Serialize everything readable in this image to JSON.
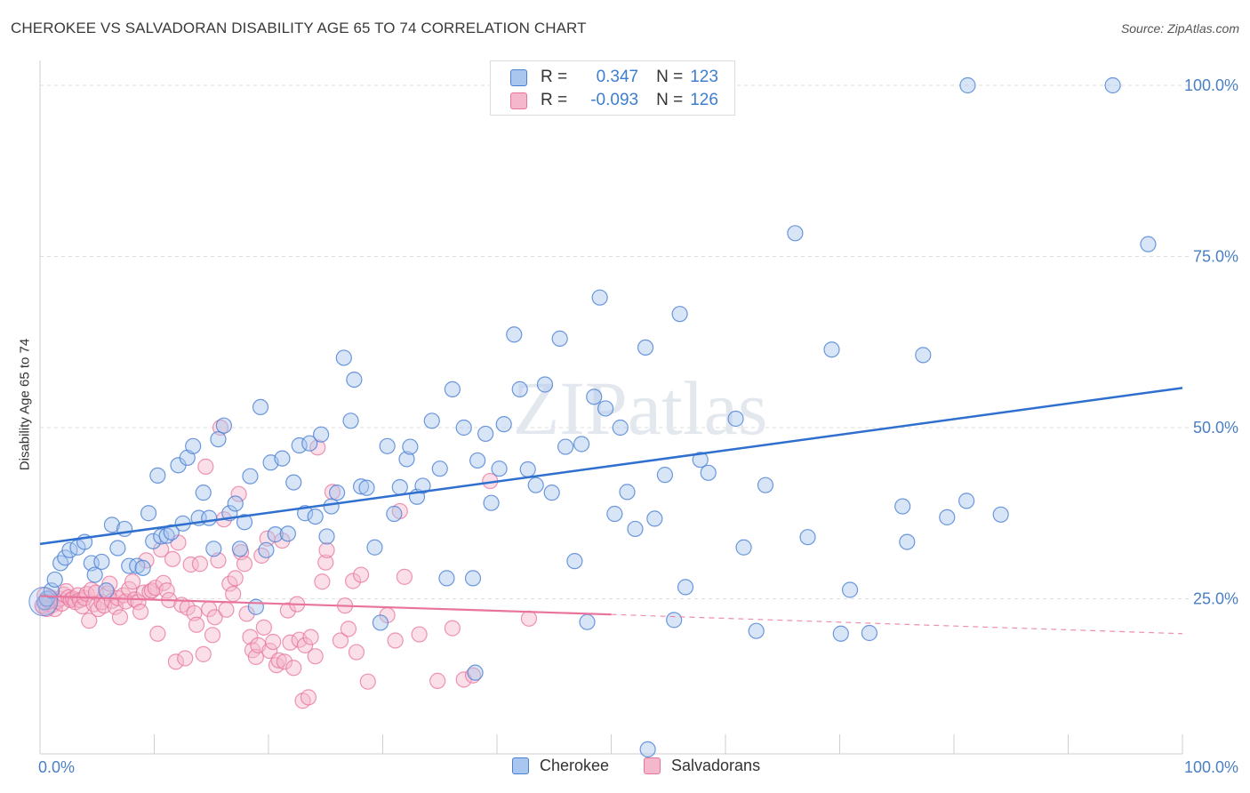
{
  "title": "CHEROKEE VS SALVADORAN DISABILITY AGE 65 TO 74 CORRELATION CHART",
  "source": "Source: ZipAtlas.com",
  "watermark": "ZIPatlas",
  "legend": {
    "r_label": "R =",
    "n_label": "N =",
    "rows": [
      {
        "series": "Cherokee",
        "r": "0.347",
        "n": "123"
      },
      {
        "series": "Salvadorans",
        "r": "-0.093",
        "n": "126"
      }
    ]
  },
  "bottom_legend": [
    "Cherokee",
    "Salvadorans"
  ],
  "colors": {
    "cherokee": "#4a7fd4",
    "cherokee_fill": "#a9c6ee",
    "salvadoran": "#e8739b",
    "salvadoran_fill": "#f5b7cc",
    "axis_text": "#4a7fc4"
  },
  "chart_data": {
    "type": "scatter",
    "title": "CHEROKEE VS SALVADORAN DISABILITY AGE 65 TO 74 CORRELATION CHART",
    "xlabel": "",
    "ylabel": "Disability Age 65 to 74",
    "xlim": [
      0,
      100
    ],
    "ylim": [
      0,
      100
    ],
    "x_tick_labels": [
      "0.0%",
      "100.0%"
    ],
    "y_tick_labels": [
      "25.0%",
      "50.0%",
      "75.0%",
      "100.0%"
    ],
    "y_ticks": [
      25,
      50,
      75,
      100
    ],
    "grid": true,
    "legend_position": "top-center",
    "series": [
      {
        "name": "Cherokee",
        "r": 0.347,
        "n": 123,
        "trend": {
          "x": [
            0,
            100
          ],
          "y": [
            33.0,
            55.8
          ]
        },
        "points": [
          [
            0.4,
            24.5
          ],
          [
            0.6,
            25.0
          ],
          [
            1.0,
            26.2
          ],
          [
            1.3,
            27.8
          ],
          [
            1.8,
            30.2
          ],
          [
            2.2,
            31.0
          ],
          [
            2.6,
            32.1
          ],
          [
            3.3,
            32.5
          ],
          [
            3.9,
            33.3
          ],
          [
            4.5,
            30.2
          ],
          [
            4.8,
            28.5
          ],
          [
            5.4,
            30.4
          ],
          [
            5.8,
            26.2
          ],
          [
            6.3,
            35.8
          ],
          [
            6.8,
            32.4
          ],
          [
            7.4,
            35.2
          ],
          [
            7.8,
            29.8
          ],
          [
            8.5,
            29.8
          ],
          [
            9.0,
            29.5
          ],
          [
            9.5,
            37.5
          ],
          [
            9.9,
            33.4
          ],
          [
            10.3,
            43.0
          ],
          [
            10.6,
            34.1
          ],
          [
            11.1,
            34.2
          ],
          [
            11.5,
            34.7
          ],
          [
            12.1,
            44.5
          ],
          [
            12.5,
            36.0
          ],
          [
            12.9,
            45.6
          ],
          [
            13.4,
            47.3
          ],
          [
            13.9,
            36.8
          ],
          [
            14.3,
            40.5
          ],
          [
            14.8,
            36.8
          ],
          [
            15.2,
            32.3
          ],
          [
            15.6,
            48.3
          ],
          [
            16.1,
            50.3
          ],
          [
            16.6,
            37.5
          ],
          [
            17.1,
            38.9
          ],
          [
            17.5,
            32.3
          ],
          [
            17.9,
            36.2
          ],
          [
            18.4,
            42.9
          ],
          [
            18.9,
            23.8
          ],
          [
            19.3,
            53.0
          ],
          [
            19.8,
            32.1
          ],
          [
            20.2,
            44.9
          ],
          [
            20.6,
            34.4
          ],
          [
            21.2,
            45.5
          ],
          [
            21.7,
            34.5
          ],
          [
            22.2,
            42.0
          ],
          [
            22.7,
            47.4
          ],
          [
            23.2,
            37.5
          ],
          [
            23.6,
            47.7
          ],
          [
            24.1,
            37.0
          ],
          [
            24.6,
            49.0
          ],
          [
            25.1,
            34.1
          ],
          [
            25.5,
            38.5
          ],
          [
            26.0,
            40.5
          ],
          [
            26.6,
            60.2
          ],
          [
            27.2,
            51.0
          ],
          [
            27.5,
            57.0
          ],
          [
            28.1,
            41.4
          ],
          [
            28.6,
            41.2
          ],
          [
            29.3,
            32.5
          ],
          [
            29.8,
            21.5
          ],
          [
            30.4,
            47.3
          ],
          [
            31.0,
            37.4
          ],
          [
            31.5,
            41.3
          ],
          [
            32.1,
            45.4
          ],
          [
            32.4,
            47.2
          ],
          [
            33.0,
            39.9
          ],
          [
            33.5,
            41.5
          ],
          [
            34.3,
            51.0
          ],
          [
            35.0,
            44.0
          ],
          [
            35.6,
            28.0
          ],
          [
            36.1,
            55.6
          ],
          [
            37.1,
            50.0
          ],
          [
            37.9,
            28.0
          ],
          [
            38.3,
            45.2
          ],
          [
            39.0,
            49.1
          ],
          [
            39.5,
            39.0
          ],
          [
            40.2,
            44.0
          ],
          [
            40.6,
            50.5
          ],
          [
            41.5,
            63.6
          ],
          [
            42.0,
            55.6
          ],
          [
            42.7,
            43.9
          ],
          [
            43.4,
            41.6
          ],
          [
            44.2,
            56.3
          ],
          [
            44.8,
            40.5
          ],
          [
            45.5,
            63.0
          ],
          [
            46.0,
            47.2
          ],
          [
            46.8,
            30.5
          ],
          [
            47.4,
            47.6
          ],
          [
            47.9,
            21.6
          ],
          [
            48.5,
            54.5
          ],
          [
            49.0,
            69.0
          ],
          [
            49.5,
            52.8
          ],
          [
            50.3,
            37.4
          ],
          [
            50.8,
            50.0
          ],
          [
            51.4,
            40.6
          ],
          [
            52.1,
            35.2
          ],
          [
            53.0,
            61.7
          ],
          [
            53.8,
            36.7
          ],
          [
            54.7,
            43.1
          ],
          [
            55.5,
            21.9
          ],
          [
            56.0,
            66.6
          ],
          [
            56.5,
            26.7
          ],
          [
            57.8,
            45.3
          ],
          [
            58.5,
            43.4
          ],
          [
            60.9,
            51.3
          ],
          [
            61.6,
            32.5
          ],
          [
            62.7,
            20.3
          ],
          [
            63.5,
            41.6
          ],
          [
            66.1,
            78.4
          ],
          [
            67.2,
            34.0
          ],
          [
            69.3,
            61.4
          ],
          [
            70.1,
            19.9
          ],
          [
            70.9,
            26.3
          ],
          [
            72.6,
            20.0
          ],
          [
            75.5,
            38.5
          ],
          [
            75.9,
            33.3
          ],
          [
            77.3,
            60.6
          ],
          [
            79.4,
            36.9
          ],
          [
            81.1,
            39.3
          ],
          [
            81.2,
            100.0
          ],
          [
            84.1,
            37.3
          ],
          [
            93.9,
            100.0
          ],
          [
            97.0,
            76.8
          ],
          [
            53.2,
            3.0
          ],
          [
            38.1,
            14.2
          ]
        ]
      },
      {
        "name": "Salvadorans",
        "r": -0.093,
        "n": 126,
        "trend": {
          "x": [
            0,
            50
          ],
          "y": [
            25.4,
            22.7
          ]
        },
        "trend_dashed": {
          "x": [
            50,
            100
          ],
          "y": [
            22.7,
            19.9
          ]
        },
        "points": [
          [
            0.3,
            23.8
          ],
          [
            0.5,
            24.3
          ],
          [
            0.7,
            24.9
          ],
          [
            0.9,
            25.2
          ],
          [
            1.1,
            24.1
          ],
          [
            1.3,
            23.5
          ],
          [
            1.5,
            24.6
          ],
          [
            1.7,
            25.0
          ],
          [
            1.9,
            24.3
          ],
          [
            2.1,
            25.6
          ],
          [
            2.3,
            26.1
          ],
          [
            2.5,
            25.2
          ],
          [
            2.7,
            24.8
          ],
          [
            2.9,
            25.0
          ],
          [
            3.1,
            24.5
          ],
          [
            3.3,
            25.5
          ],
          [
            3.5,
            24.8
          ],
          [
            3.7,
            23.9
          ],
          [
            3.9,
            25.1
          ],
          [
            4.1,
            25.7
          ],
          [
            4.3,
            21.8
          ],
          [
            4.5,
            26.3
          ],
          [
            4.7,
            24.2
          ],
          [
            4.9,
            25.9
          ],
          [
            5.1,
            23.5
          ],
          [
            5.4,
            24.5
          ],
          [
            5.6,
            24.0
          ],
          [
            5.9,
            25.8
          ],
          [
            6.1,
            27.2
          ],
          [
            6.3,
            24.7
          ],
          [
            6.6,
            23.8
          ],
          [
            6.8,
            25.1
          ],
          [
            7.0,
            22.3
          ],
          [
            7.3,
            25.5
          ],
          [
            7.5,
            24.6
          ],
          [
            7.8,
            26.4
          ],
          [
            8.1,
            27.5
          ],
          [
            8.3,
            24.9
          ],
          [
            8.6,
            24.5
          ],
          [
            8.8,
            23.1
          ],
          [
            9.1,
            25.9
          ],
          [
            9.3,
            30.6
          ],
          [
            9.6,
            26.0
          ],
          [
            9.8,
            26.2
          ],
          [
            10.1,
            26.6
          ],
          [
            10.3,
            19.9
          ],
          [
            10.6,
            32.2
          ],
          [
            10.8,
            27.3
          ],
          [
            11.1,
            26.2
          ],
          [
            11.3,
            24.8
          ],
          [
            11.6,
            30.8
          ],
          [
            11.9,
            15.8
          ],
          [
            12.1,
            33.2
          ],
          [
            12.4,
            24.1
          ],
          [
            12.7,
            16.3
          ],
          [
            12.9,
            23.7
          ],
          [
            13.2,
            30.0
          ],
          [
            13.5,
            22.9
          ],
          [
            13.7,
            21.2
          ],
          [
            14.0,
            30.1
          ],
          [
            14.3,
            16.9
          ],
          [
            14.5,
            44.3
          ],
          [
            14.8,
            23.5
          ],
          [
            15.1,
            19.7
          ],
          [
            15.3,
            22.3
          ],
          [
            15.6,
            30.6
          ],
          [
            15.8,
            50.0
          ],
          [
            16.1,
            36.6
          ],
          [
            16.3,
            23.4
          ],
          [
            16.6,
            27.2
          ],
          [
            16.9,
            25.7
          ],
          [
            17.1,
            28.0
          ],
          [
            17.4,
            40.3
          ],
          [
            17.6,
            31.8
          ],
          [
            17.9,
            30.1
          ],
          [
            18.1,
            22.8
          ],
          [
            18.4,
            19.4
          ],
          [
            18.6,
            17.5
          ],
          [
            18.9,
            16.5
          ],
          [
            19.1,
            18.2
          ],
          [
            19.4,
            31.3
          ],
          [
            19.6,
            20.8
          ],
          [
            19.9,
            33.8
          ],
          [
            20.1,
            17.4
          ],
          [
            20.4,
            18.7
          ],
          [
            20.7,
            15.3
          ],
          [
            20.9,
            16.0
          ],
          [
            21.2,
            33.5
          ],
          [
            21.4,
            15.8
          ],
          [
            21.7,
            23.3
          ],
          [
            21.9,
            18.6
          ],
          [
            22.2,
            14.9
          ],
          [
            22.5,
            24.2
          ],
          [
            22.7,
            19.0
          ],
          [
            23.0,
            10.1
          ],
          [
            23.2,
            18.2
          ],
          [
            23.5,
            10.6
          ],
          [
            23.7,
            19.4
          ],
          [
            24.1,
            16.6
          ],
          [
            24.3,
            47.1
          ],
          [
            24.7,
            27.5
          ],
          [
            25.0,
            30.3
          ],
          [
            25.1,
            32.1
          ],
          [
            25.6,
            40.6
          ],
          [
            26.3,
            18.9
          ],
          [
            26.7,
            24.0
          ],
          [
            27.0,
            20.6
          ],
          [
            27.4,
            27.6
          ],
          [
            27.7,
            17.2
          ],
          [
            28.1,
            28.5
          ],
          [
            28.7,
            12.9
          ],
          [
            30.4,
            22.6
          ],
          [
            31.1,
            18.9
          ],
          [
            31.5,
            37.8
          ],
          [
            31.9,
            28.2
          ],
          [
            33.2,
            19.8
          ],
          [
            34.8,
            13.0
          ],
          [
            36.1,
            20.7
          ],
          [
            37.1,
            13.2
          ],
          [
            37.9,
            13.8
          ],
          [
            39.4,
            42.2
          ],
          [
            42.8,
            22.1
          ],
          [
            0.2,
            24.0
          ],
          [
            0.4,
            25.5
          ],
          [
            0.6,
            23.5
          ],
          [
            0.8,
            24.6
          ]
        ]
      }
    ]
  }
}
